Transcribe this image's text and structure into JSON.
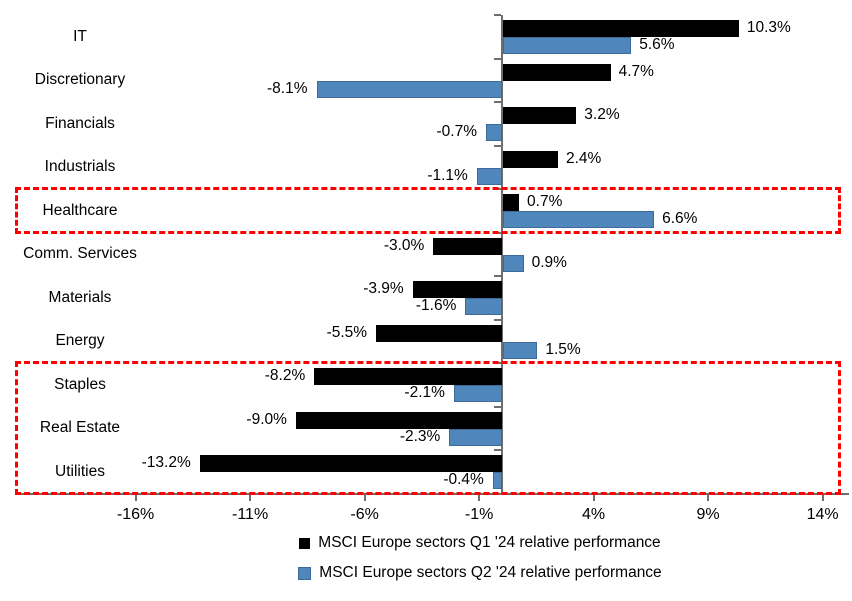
{
  "chart_data": {
    "type": "bar",
    "orientation": "horizontal",
    "title": "",
    "categories": [
      "IT",
      "Discretionary",
      "Financials",
      "Industrials",
      "Healthcare",
      "Comm. Services",
      "Materials",
      "Energy",
      "Staples",
      "Real Estate",
      "Utilities"
    ],
    "series": [
      {
        "name": "MSCI Europe sectors Q1 '24 relative performance",
        "color": "#000000",
        "border_color": "#000000",
        "values": [
          10.3,
          4.7,
          3.2,
          2.4,
          0.7,
          -3.0,
          -3.9,
          -5.5,
          -8.2,
          -9.0,
          -13.2
        ]
      },
      {
        "name": "MSCI Europe sectors Q2 '24 relative performance",
        "color": "#4F86BC",
        "border_color": "#3D6A99",
        "values": [
          5.6,
          -8.1,
          -0.7,
          -1.1,
          6.6,
          0.9,
          -1.6,
          1.5,
          -2.1,
          -2.3,
          -0.4
        ]
      }
    ],
    "value_label_format": "0.0%",
    "x_ticks": {
      "values": [
        -16,
        -11,
        -6,
        -1,
        4,
        9,
        14
      ],
      "labels": [
        "-16%",
        "-11%",
        "-6%",
        "-1%",
        "4%",
        "9%",
        "14%"
      ]
    },
    "xlim": [
      -17.5,
      15.3
    ],
    "grid": false,
    "axis_color": "#6e6e6e",
    "legend_position": "bottom-center",
    "highlights": [
      {
        "label": "healthcare-box",
        "categories": [
          "Healthcare"
        ],
        "style": "red-dashed-box",
        "color": "#FF0000"
      },
      {
        "label": "defensives-box",
        "categories": [
          "Staples",
          "Real Estate",
          "Utilities"
        ],
        "style": "red-dashed-box",
        "color": "#FF0000"
      }
    ]
  }
}
